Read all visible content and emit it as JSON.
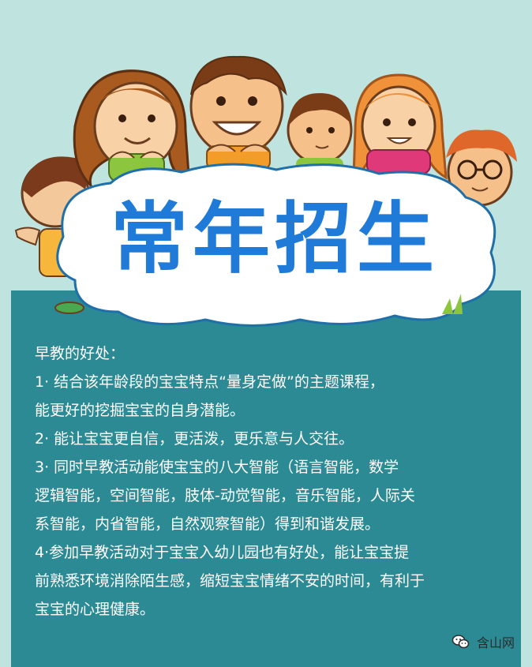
{
  "poster": {
    "title": "常年招生",
    "benefits_heading": "早教的好处：",
    "items": [
      "1·  结合该年龄段的宝宝特点“量身定做”的主题课程，",
      "能更好的挖掘宝宝的自身潜能。",
      "2·  能让宝宝更自信，更活泼，更乐意与人交往。",
      "3·  同时早教活动能使宝宝的八大智能（语言智能，数学",
      "逻辑智能，空间智能，肢体-动觉智能，音乐智能，人际关",
      "系智能，内省智能，自然观察智能）得到和谐发展。",
      "4·参加早教活动对于宝宝入幼儿园也有好处，能让宝宝提",
      "前熟悉环境消除陌生感，缩短宝宝情绪不安的时间，有利于",
      "宝宝的心理健康。"
    ]
  },
  "watermark": {
    "label": "含山网",
    "icon": "wechat-icon"
  },
  "colors": {
    "background": "#bfe3df",
    "panel": "#2c8a95",
    "title_blue": "#1f7ad8",
    "text": "#ffffff"
  }
}
